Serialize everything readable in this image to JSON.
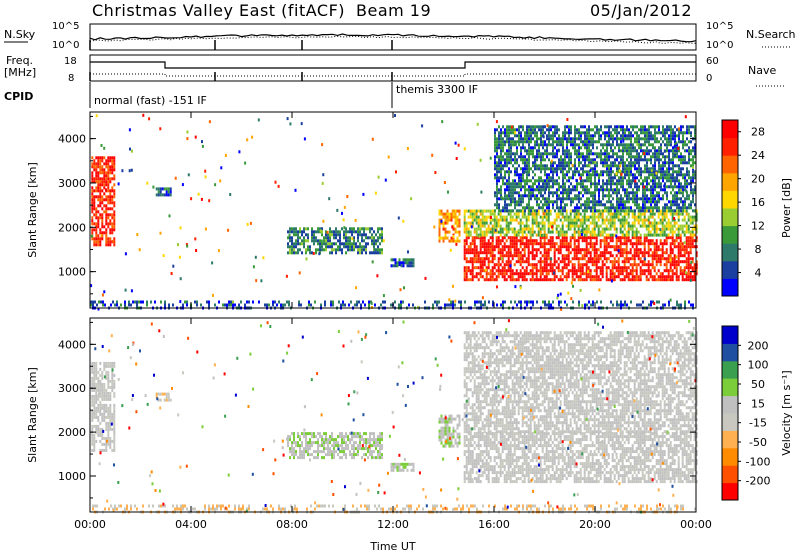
{
  "header": {
    "station": "Christmas Valley East (fitACF)",
    "beam": "Beam 19",
    "date": "05/Jan/2012"
  },
  "top_strip": {
    "left_label": "N.Sky",
    "right_label": "N.Search",
    "left_ticks": [
      "10^5",
      "10^0"
    ],
    "right_ticks": [
      "10^5",
      "10^0"
    ]
  },
  "freq_strip": {
    "left_label_1": "Freq.",
    "left_label_2": "[MHz]",
    "left_ticks": [
      "18",
      "8"
    ],
    "right_label": "Nave",
    "right_ticks": [
      "60",
      "0"
    ]
  },
  "cpid": {
    "label": "CPID",
    "mode_1": "normal (fast) -151 IF",
    "mode_2": "themis 3300 IF"
  },
  "colors": {
    "power": [
      "#0000ff",
      "#1a3fa0",
      "#2e7a6a",
      "#3a9a3a",
      "#9acd32",
      "#ffd700",
      "#ffa500",
      "#ff6400",
      "#ff2000",
      "#ff0000"
    ],
    "velocity": [
      "#ff0000",
      "#ff5000",
      "#ff8c00",
      "#ffb050",
      "#c8c8c0",
      "#c0c0c0",
      "#7ccd3a",
      "#3aa050",
      "#1f4fa0",
      "#0000cc"
    ]
  },
  "chart_data": [
    {
      "type": "heatmap",
      "title": "",
      "xlabel": "",
      "ylabel": "Slant Range [km]",
      "x_ticks": [
        "00:00",
        "04:00",
        "08:00",
        "12:00",
        "16:00",
        "20:00",
        "00:00"
      ],
      "y_ticks": [
        "1000",
        "2000",
        "3000",
        "4000"
      ],
      "xlim_hours": [
        0,
        24
      ],
      "ylim_km": [
        180,
        4600
      ],
      "colorbar": {
        "label": "Power [dB]",
        "ticks": [
          "4",
          "8",
          "12",
          "16",
          "20",
          "24",
          "28"
        ],
        "range": [
          0,
          30
        ]
      },
      "regions": [
        {
          "x": [
            0.05,
            1.0
          ],
          "y": [
            1600,
            3600
          ],
          "value": 26
        },
        {
          "x": [
            2.6,
            3.2
          ],
          "y": [
            2700,
            2900
          ],
          "value": 6
        },
        {
          "x": [
            7.8,
            11.6
          ],
          "y": [
            1400,
            2000
          ],
          "value": 8
        },
        {
          "x": [
            11.9,
            12.8
          ],
          "y": [
            1100,
            1300
          ],
          "value": 6
        },
        {
          "x": [
            13.8,
            14.6
          ],
          "y": [
            1700,
            2400
          ],
          "value": 20
        },
        {
          "x": [
            14.8,
            24.0
          ],
          "y": [
            850,
            1800
          ],
          "value": 27
        },
        {
          "x": [
            14.8,
            24.0
          ],
          "y": [
            1800,
            2400
          ],
          "value": 14
        },
        {
          "x": [
            16.0,
            24.0
          ],
          "y": [
            2400,
            4300
          ],
          "value": 7
        },
        {
          "x": [
            0.0,
            24.0
          ],
          "y": [
            180,
            350
          ],
          "value": 5
        }
      ]
    },
    {
      "type": "heatmap",
      "title": "",
      "xlabel": "Time UT",
      "ylabel": "Slant Range [km]",
      "x_ticks": [
        "00:00",
        "04:00",
        "08:00",
        "12:00",
        "16:00",
        "20:00",
        "00:00"
      ],
      "y_ticks": [
        "1000",
        "2000",
        "3000",
        "4000"
      ],
      "xlim_hours": [
        0,
        24
      ],
      "ylim_km": [
        180,
        4600
      ],
      "colorbar": {
        "label": "Velocity [m s⁻¹]",
        "ticks": [
          "200",
          "100",
          "50",
          "15",
          "-15",
          "-50",
          "-100",
          "-200"
        ],
        "range": [
          -250,
          250
        ]
      },
      "regions": [
        {
          "x": [
            0.05,
            1.0
          ],
          "y": [
            1600,
            3600
          ],
          "value": 0
        },
        {
          "x": [
            2.6,
            3.2
          ],
          "y": [
            2700,
            2900
          ],
          "value": -40
        },
        {
          "x": [
            7.8,
            11.6
          ],
          "y": [
            1400,
            2000
          ],
          "value": 40
        },
        {
          "x": [
            11.9,
            12.8
          ],
          "y": [
            1100,
            1300
          ],
          "value": 40
        },
        {
          "x": [
            13.8,
            14.6
          ],
          "y": [
            1700,
            2400
          ],
          "value": 40
        },
        {
          "x": [
            14.8,
            24.0
          ],
          "y": [
            850,
            2000
          ],
          "value": 0
        },
        {
          "x": [
            14.8,
            24.0
          ],
          "y": [
            2000,
            4300
          ],
          "value": 0
        },
        {
          "x": [
            0.0,
            24.0
          ],
          "y": [
            180,
            350
          ],
          "value": -50
        }
      ]
    }
  ]
}
